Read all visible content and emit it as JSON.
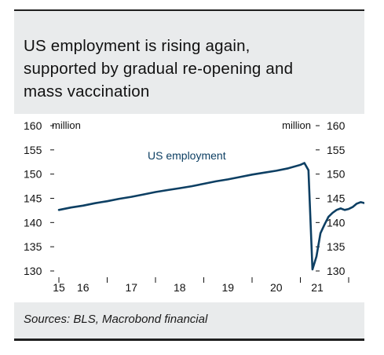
{
  "title_lines": [
    "US employment is rising again,",
    "supported by gradual re-opening and",
    "mass vaccination"
  ],
  "source": "Sources: BLS, Macrobond financial",
  "colors": {
    "line": "#0d3f63",
    "panel": "#e9ebec",
    "text": "#111111"
  },
  "chart_data": {
    "type": "line",
    "title": "US employment is rising again, supported by gradual re-opening and mass vaccination",
    "xlabel": "",
    "ylabel_left": "million",
    "ylabel_right": "million",
    "ylim": [
      130,
      160
    ],
    "yticks": [
      130,
      135,
      140,
      145,
      150,
      155,
      160
    ],
    "xticks": [
      "15",
      "16",
      "17",
      "18",
      "19",
      "20",
      "21"
    ],
    "grid": false,
    "series_label": "US employment",
    "series": [
      {
        "name": "US employment",
        "x": [
          "2015-01",
          "2015-04",
          "2015-07",
          "2015-10",
          "2016-01",
          "2016-04",
          "2016-07",
          "2016-10",
          "2017-01",
          "2017-04",
          "2017-07",
          "2017-10",
          "2018-01",
          "2018-04",
          "2018-07",
          "2018-10",
          "2019-01",
          "2019-04",
          "2019-07",
          "2019-10",
          "2020-01",
          "2020-02",
          "2020-03",
          "2020-04",
          "2020-05",
          "2020-06",
          "2020-07",
          "2020-08",
          "2020-09",
          "2020-10",
          "2020-11",
          "2020-12",
          "2021-01",
          "2021-02",
          "2021-03",
          "2021-04",
          "2021-05"
        ],
        "values": [
          142.6,
          143.1,
          143.5,
          144.0,
          144.4,
          144.9,
          145.3,
          145.8,
          146.3,
          146.7,
          147.1,
          147.5,
          148.0,
          148.5,
          148.9,
          149.4,
          149.9,
          150.3,
          150.7,
          151.2,
          151.9,
          152.3,
          150.8,
          130.3,
          133.0,
          137.8,
          139.6,
          141.2,
          142.0,
          142.6,
          142.9,
          142.6,
          142.8,
          143.2,
          143.9,
          144.2,
          144.0
        ]
      }
    ]
  }
}
